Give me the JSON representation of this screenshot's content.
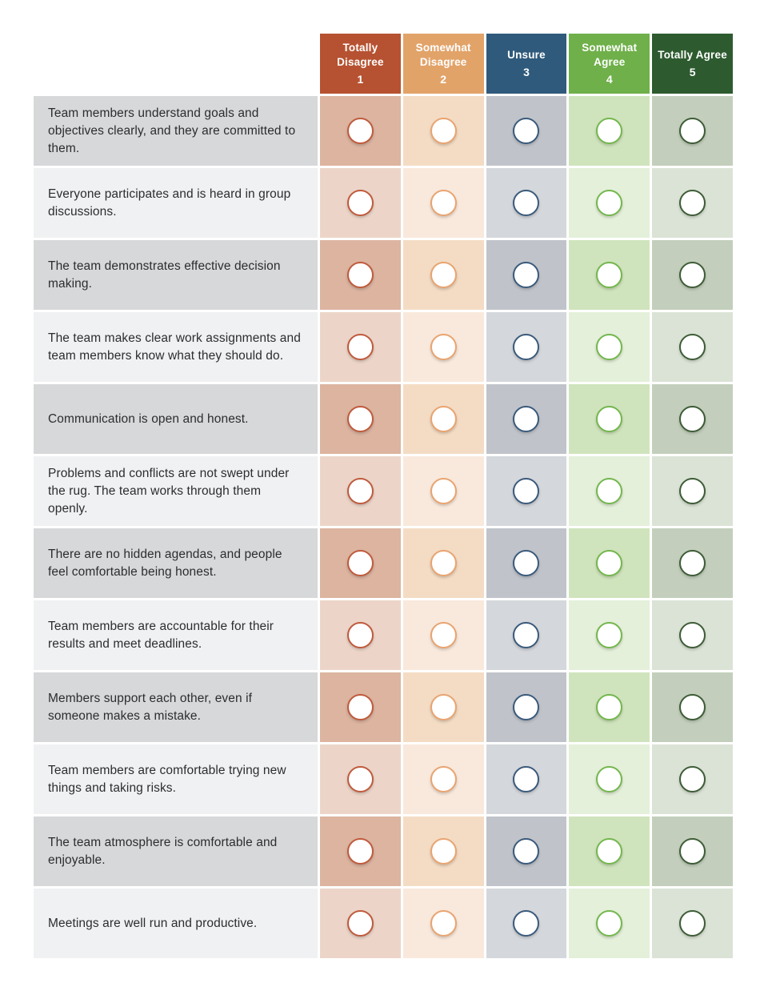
{
  "table": {
    "columns": [
      {
        "label": "Totally Disagree",
        "number": "1",
        "header_bg": "#b65231",
        "ring": "#c05a3c",
        "cell_odd": "#dcb4a0",
        "cell_even": "#ecd5c8"
      },
      {
        "label": "Somewhat Disagree",
        "number": "2",
        "header_bg": "#e2a369",
        "ring": "#e9a470",
        "cell_odd": "#f4dcc4",
        "cell_even": "#f9e9dc"
      },
      {
        "label": "Unsure",
        "number": "3",
        "header_bg": "#2f5a7b",
        "ring": "#3a5a7c",
        "cell_odd": "#c0c4ca",
        "cell_even": "#d4d7db"
      },
      {
        "label": "Somewhat Agree",
        "number": "4",
        "header_bg": "#6fb04a",
        "ring": "#74b74e",
        "cell_odd": "#cfe4bc",
        "cell_even": "#e4f0d9"
      },
      {
        "label": "Totally Agree",
        "number": "5",
        "header_bg": "#2d5b2f",
        "ring": "#3d5c36",
        "cell_odd": "#c3cfbc",
        "cell_even": "#dbe3d6"
      }
    ],
    "questions": [
      "Team members understand goals and objectives clearly, and they are committed to them.",
      "Everyone participates and is heard in group discussions.",
      "The team demonstrates effective decision making.",
      "The team makes clear work assignments and team members know what they should do.",
      "Communication is open and honest.",
      "Problems and conflicts are not swept under the rug. The team works through them openly.",
      "There are no hidden agendas, and people feel comfortable being honest.",
      "Team members are accountable for their results and meet deadlines.",
      "Members support each other, even if someone makes a mistake.",
      "Team members are comfortable trying new things and taking risks.",
      "The team atmosphere is comfortable and enjoyable.",
      "Meetings are well run and productive."
    ],
    "row_colors": {
      "question_odd": "#d6d8da",
      "question_even": "#f0f1f2"
    },
    "question_text_color": "#2b2d2f"
  }
}
